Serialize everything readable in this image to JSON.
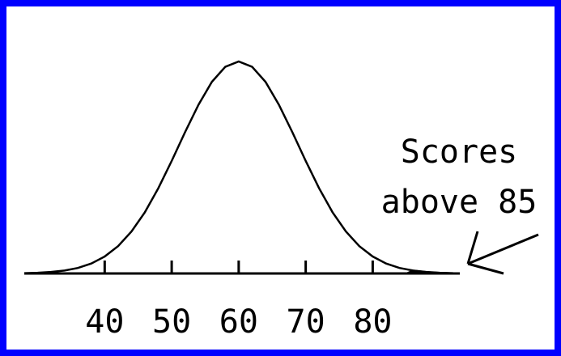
{
  "chart_data": {
    "type": "line",
    "x": [
      28,
      30,
      32,
      34,
      36,
      38,
      40,
      42,
      44,
      46,
      48,
      50,
      52,
      54,
      56,
      58,
      60,
      62,
      64,
      66,
      68,
      70,
      72,
      74,
      76,
      78,
      80,
      82,
      84,
      86,
      88,
      90,
      92
    ],
    "values": [
      0.0015,
      0.0034,
      0.007,
      0.014,
      0.026,
      0.047,
      0.08,
      0.129,
      0.198,
      0.289,
      0.402,
      0.531,
      0.667,
      0.796,
      0.904,
      0.975,
      1,
      0.975,
      0.904,
      0.796,
      0.667,
      0.531,
      0.402,
      0.289,
      0.198,
      0.129,
      0.08,
      0.047,
      0.026,
      0.014,
      0.007,
      0.0034,
      0.0015
    ],
    "color": "#000000",
    "xlim": [
      28,
      93
    ],
    "xticks": [
      40,
      50,
      60,
      70,
      80
    ],
    "ylim": [
      0,
      1
    ],
    "shaded_above": 85,
    "annotation": [
      "Scores",
      "above 85"
    ]
  }
}
